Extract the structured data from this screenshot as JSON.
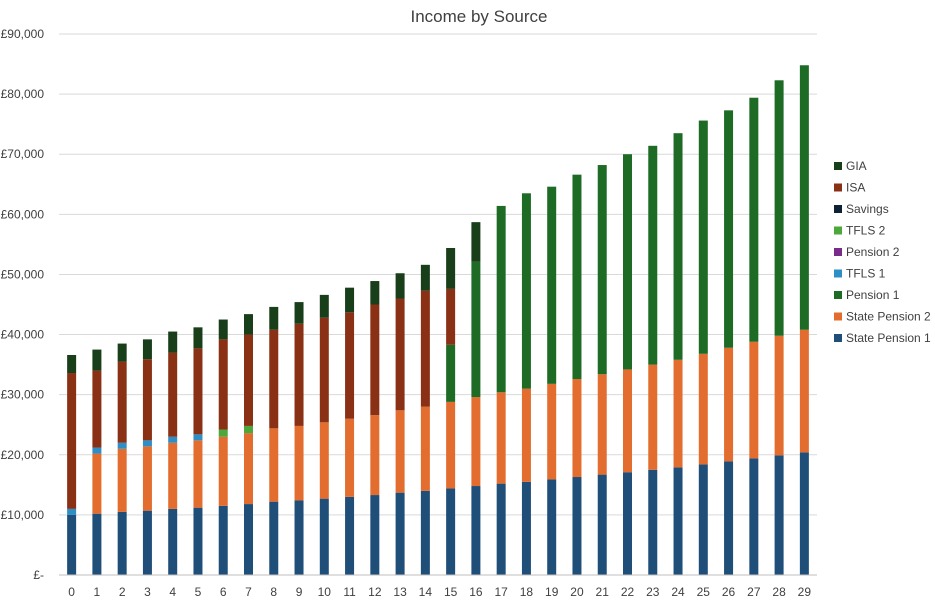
{
  "chart_data": {
    "type": "bar",
    "stacked": true,
    "title": "Income by Source",
    "xlabel": "",
    "ylabel": "",
    "ylim": [
      0,
      90000
    ],
    "yticks": [
      0,
      10000,
      20000,
      30000,
      40000,
      50000,
      60000,
      70000,
      80000,
      90000
    ],
    "ytick_labels": [
      "£-",
      "£10,000",
      "£20,000",
      "£30,000",
      "£40,000",
      "£50,000",
      "£60,000",
      "£70,000",
      "£80,000",
      "£90,000"
    ],
    "grid": true,
    "legend_position": "right",
    "categories": [
      "0",
      "1",
      "2",
      "3",
      "4",
      "5",
      "6",
      "7",
      "8",
      "9",
      "10",
      "11",
      "12",
      "13",
      "14",
      "15",
      "16",
      "17",
      "18",
      "19",
      "20",
      "21",
      "22",
      "23",
      "24",
      "25",
      "26",
      "27",
      "28",
      "29"
    ],
    "series": [
      {
        "name": "State Pension 1",
        "color": "#1f4e79",
        "values": [
          10000,
          10200,
          10500,
          10700,
          11000,
          11200,
          11500,
          11800,
          12200,
          12400,
          12700,
          13000,
          13300,
          13700,
          14000,
          14400,
          14800,
          15200,
          15500,
          15900,
          16300,
          16700,
          17100,
          17500,
          17900,
          18400,
          18900,
          19400,
          19900,
          20400
        ]
      },
      {
        "name": "State Pension 2",
        "color": "#e36c2f",
        "values": [
          0,
          10000,
          10500,
          10700,
          11000,
          11200,
          11500,
          11800,
          12200,
          12400,
          12700,
          13000,
          13300,
          13700,
          14000,
          14400,
          14800,
          15200,
          15500,
          15900,
          16300,
          16700,
          17100,
          17500,
          17900,
          18400,
          18900,
          19400,
          19900,
          20400
        ]
      },
      {
        "name": "Pension 1",
        "color": "#1e6b26",
        "values": [
          0,
          0,
          0,
          0,
          0,
          0,
          0,
          0,
          0,
          0,
          0,
          0,
          0,
          0,
          0,
          9500,
          22500,
          31000,
          32500,
          32800,
          34000,
          34800,
          35800,
          36400,
          37700,
          38800,
          39500,
          40600,
          42500,
          44000
        ]
      },
      {
        "name": "TFLS 1",
        "color": "#2e8fc7",
        "values": [
          1000,
          1000,
          1000,
          1000,
          1000,
          1000,
          0,
          0,
          0,
          0,
          0,
          0,
          0,
          0,
          0,
          0,
          0,
          0,
          0,
          0,
          0,
          0,
          0,
          0,
          0,
          0,
          0,
          0,
          0,
          0
        ]
      },
      {
        "name": "Pension 2",
        "color": "#7a2a8a",
        "values": [
          0,
          0,
          0,
          0,
          0,
          0,
          0,
          0,
          0,
          0,
          0,
          0,
          0,
          0,
          0,
          0,
          0,
          0,
          0,
          0,
          0,
          0,
          0,
          0,
          0,
          0,
          0,
          0,
          0,
          0
        ]
      },
      {
        "name": "TFLS 2",
        "color": "#4ca83a",
        "values": [
          0,
          0,
          0,
          0,
          0,
          0,
          1200,
          1200,
          0,
          0,
          0,
          0,
          0,
          0,
          0,
          0,
          0,
          0,
          0,
          0,
          0,
          0,
          0,
          0,
          0,
          0,
          0,
          0,
          0,
          0
        ]
      },
      {
        "name": "Savings",
        "color": "#0e2236",
        "values": [
          0,
          0,
          0,
          0,
          0,
          0,
          0,
          0,
          0,
          0,
          0,
          0,
          0,
          0,
          0,
          0,
          0,
          0,
          0,
          0,
          0,
          0,
          0,
          0,
          0,
          0,
          0,
          0,
          0,
          0
        ]
      },
      {
        "name": "ISA",
        "color": "#8a3014",
        "values": [
          22600,
          12800,
          13500,
          13500,
          14000,
          14300,
          15000,
          15200,
          16400,
          17000,
          17400,
          17700,
          18400,
          18600,
          19300,
          9300,
          0,
          0,
          0,
          0,
          0,
          0,
          0,
          0,
          0,
          0,
          0,
          0,
          0,
          0
        ]
      },
      {
        "name": "GIA",
        "color": "#183e1a",
        "values": [
          3000,
          3500,
          3000,
          3300,
          3500,
          3500,
          3300,
          3400,
          3800,
          3600,
          3800,
          4100,
          3900,
          4200,
          4300,
          6800,
          6600,
          0,
          0,
          0,
          0,
          0,
          0,
          0,
          0,
          0,
          0,
          0,
          0,
          0
        ]
      }
    ]
  }
}
